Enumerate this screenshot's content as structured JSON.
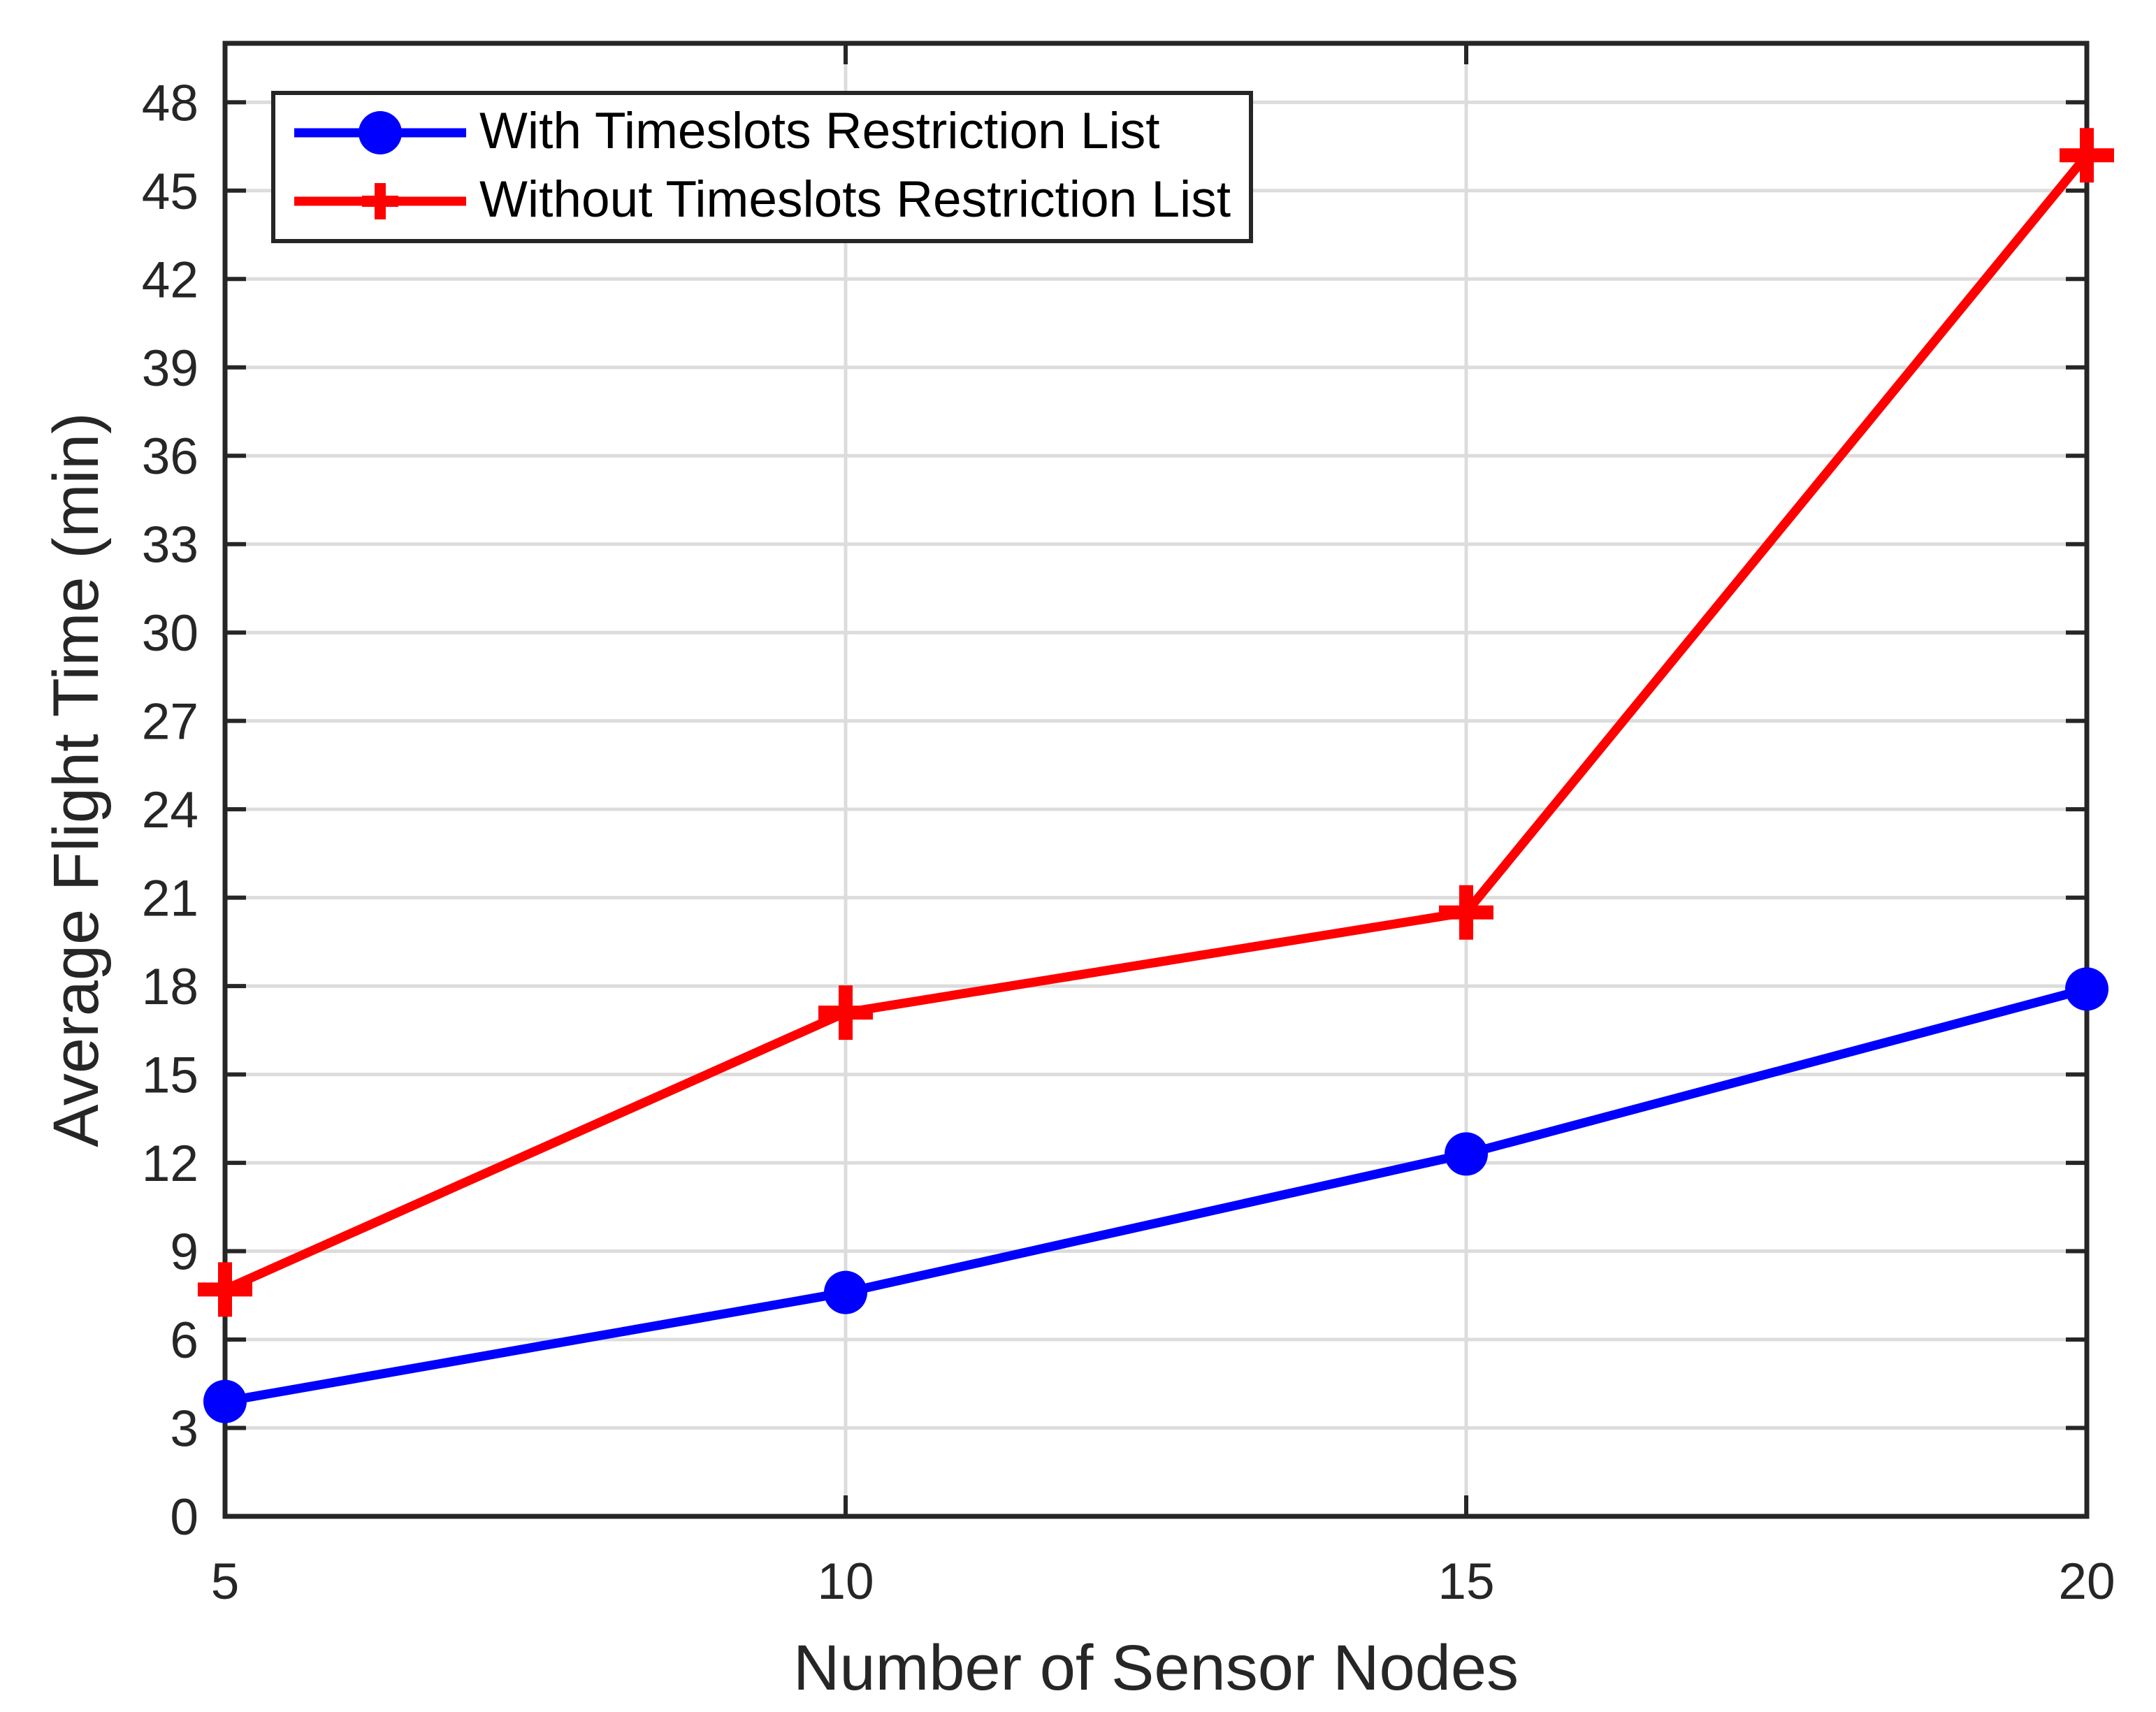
{
  "style": {
    "axis_color": "#262626",
    "grid_color": "#dcdcdc",
    "background": "#ffffff",
    "legend_text_color": "#000000"
  },
  "chart_data": {
    "type": "line",
    "title": "",
    "xlabel": "Number of Sensor Nodes",
    "ylabel": "Average Flight Time (min)",
    "x": [
      5,
      10,
      15,
      20
    ],
    "series": [
      {
        "name": "With Timeslots Restriction List",
        "values": [
          3.9,
          7.6,
          12.3,
          17.9
        ],
        "color": "#0000ff",
        "marker": "circle"
      },
      {
        "name": "Without Timeslots Restriction List",
        "values": [
          7.7,
          17.1,
          20.5,
          46.2
        ],
        "color": "#ff0000",
        "marker": "plus"
      }
    ],
    "xlim": [
      5,
      20
    ],
    "ylim": [
      0,
      50
    ],
    "xticks": [
      5,
      10,
      15,
      20
    ],
    "xtick_labels": [
      "5",
      "10",
      "15",
      "20"
    ],
    "yticks": [
      0,
      3,
      6,
      9,
      12,
      15,
      18,
      21,
      24,
      27,
      30,
      33,
      36,
      39,
      42,
      45,
      48
    ],
    "ytick_labels": [
      "0",
      "3",
      "6",
      "9",
      "12",
      "15",
      "18",
      "21",
      "24",
      "27",
      "30",
      "33",
      "36",
      "39",
      "42",
      "45",
      "48"
    ],
    "grid": true,
    "box": true,
    "legend_position": "top-left"
  }
}
